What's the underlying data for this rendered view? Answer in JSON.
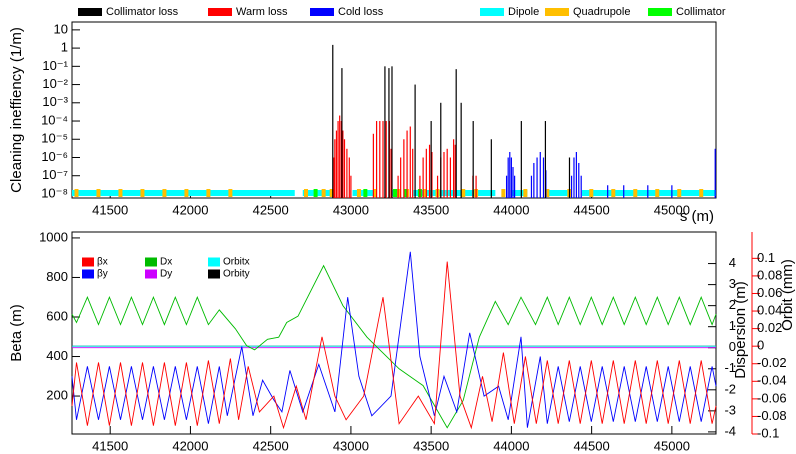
{
  "chart_data": [
    {
      "type": "bar",
      "ylabel": "Cleaning ineffiency (1/m)",
      "xlabel": "s (m)",
      "xlim": [
        41262,
        45275
      ],
      "xticks": [
        41500,
        42000,
        42500,
        43000,
        43500,
        44000,
        44500,
        45000
      ],
      "ylim": [
        6e-09,
        27
      ],
      "yscale": "log",
      "yticks": [
        10,
        1,
        {
          "value": 0.1,
          "label": "10⁻¹"
        },
        {
          "value": 0.01,
          "label": "10⁻²"
        },
        {
          "value": 0.001,
          "label": "10⁻³"
        },
        {
          "value": 0.0001,
          "label": "10⁻⁴"
        },
        {
          "value": 1e-05,
          "label": "10⁻⁵"
        },
        {
          "value": 1e-06,
          "label": "10⁻⁶"
        },
        {
          "value": 1e-07,
          "label": "10⁻⁷"
        },
        {
          "value": 1e-08,
          "label": "10⁻⁸"
        }
      ],
      "series": [
        {
          "name": "Collimator loss",
          "color": "#000000",
          "x": [
            42887,
            42944,
            43212,
            43237,
            43256,
            43400,
            43500,
            43560,
            43656,
            43687,
            43762,
            43875,
            44062,
            44212,
            44362
          ],
          "values": [
            1.5,
            0.08,
            0.1,
            0.08,
            0.1,
            0.01,
            0.0001,
            0.001,
            0.07,
            0.001,
            0.0001,
            1e-05,
            0.0001,
            0.0001,
            1e-06
          ]
        },
        {
          "name": "Warm loss",
          "color": "#ff0000",
          "x": [
            42894,
            42900,
            42910,
            42920,
            42930,
            42940,
            42950,
            42960,
            42975,
            42990,
            43000,
            43140,
            43160,
            43180,
            43200,
            43220,
            43240,
            43250,
            43294,
            43310,
            43330,
            43350,
            43370,
            43385,
            43430,
            43450,
            43470,
            43490,
            43505,
            43540,
            43560,
            43580,
            43600,
            43620,
            43640,
            43650,
            43760,
            43780
          ],
          "values": [
            1e-06,
            1e-05,
            3e-05,
            0.0001,
            0.0002,
            0.0001,
            3e-05,
            1e-05,
            3e-06,
            1e-06,
            1e-07,
            2e-05,
            0.0001,
            0.0001,
            0.0001,
            0.0001,
            0.0001,
            3e-06,
            1e-07,
            1e-06,
            1e-05,
            3e-05,
            5e-05,
            3e-06,
            1e-07,
            1e-06,
            3e-06,
            5e-06,
            2e-06,
            1e-07,
            1e-06,
            2e-06,
            3e-06,
            1e-06,
            1e-05,
            5e-06,
            1e-07,
            1e-07
          ]
        },
        {
          "name": "Cold loss",
          "color": "#0000ff",
          "x": [
            43970,
            43980,
            43990,
            44000,
            44010,
            44020,
            44125,
            44140,
            44160,
            44180,
            44200,
            44215,
            44375,
            44390,
            44405,
            44420,
            44435,
            44600,
            44700,
            44850,
            45000,
            45270
          ],
          "values": [
            1e-07,
            1e-06,
            2e-06,
            1e-06,
            3e-07,
            1e-07,
            1e-07,
            5e-07,
            1e-06,
            2e-06,
            1e-06,
            2e-07,
            1e-07,
            1e-06,
            2e-06,
            5e-07,
            1e-07,
            3e-08,
            3e-08,
            3e-08,
            3e-08,
            3e-06
          ]
        }
      ],
      "elements": [
        {
          "name": "Dipole",
          "color": "#00ffff",
          "spans": [
            [
              41262,
              42650
            ],
            [
              42700,
              42880
            ],
            [
              43010,
              43140
            ],
            [
              43260,
              43290
            ],
            [
              43390,
              43900
            ],
            [
              44000,
              44100
            ],
            [
              44220,
              44370
            ],
            [
              44440,
              45275
            ]
          ]
        },
        {
          "name": "Quadrupole",
          "color": "#ffbf00",
          "x": [
            41290,
            41427,
            41564,
            41701,
            41838,
            41975,
            42112,
            42249,
            42720,
            42830,
            42880,
            43050,
            43150,
            43300,
            43350,
            43460,
            43540,
            43700,
            43780,
            43950,
            44087,
            44224,
            44361,
            44498,
            44635,
            44772,
            44909,
            45046,
            45183
          ]
        },
        {
          "name": "Collimator",
          "color": "#00ff00",
          "x": [
            42780,
            43090,
            43275,
            43340,
            43430
          ]
        }
      ]
    },
    {
      "type": "line",
      "ylabel": "Beta (m)",
      "y2label": "Dispersion (m)",
      "y3label": "Orbit (mm)",
      "y3color": "#ff0000",
      "xlim": [
        41262,
        45275
      ],
      "xticks": [
        41500,
        42000,
        42500,
        43000,
        43500,
        44000,
        44500,
        45000
      ],
      "ylim": [
        8,
        1030
      ],
      "yticks": [
        200,
        400,
        600,
        800,
        1000
      ],
      "y2lim": [
        -4.1,
        5.5
      ],
      "y2ticks": [
        -4,
        -3,
        -2,
        -1,
        0,
        1,
        2,
        3,
        4
      ],
      "y3lim": [
        -0.1,
        0.13
      ],
      "y3ticks": [
        -0.1,
        -0.08,
        -0.06,
        -0.04,
        -0.02,
        0,
        0.02,
        0.04,
        0.06,
        0.08,
        0.1
      ],
      "series": [
        {
          "name": "βx",
          "color": "#ff0000",
          "axis": "y",
          "x": [
            41262,
            41290,
            41358,
            41427,
            41495,
            41564,
            41632,
            41701,
            41769,
            41838,
            41906,
            41975,
            42043,
            42112,
            42180,
            42249,
            42300,
            42360,
            42430,
            42520,
            42580,
            42660,
            42720,
            42820,
            42900,
            42970,
            43080,
            43200,
            43300,
            43420,
            43520,
            43600,
            43680,
            43750,
            43820,
            43880,
            43950,
            44018,
            44087,
            44155,
            44224,
            44292,
            44361,
            44429,
            44498,
            44566,
            44635,
            44703,
            44772,
            44840,
            44909,
            44977,
            45046,
            45114,
            45183,
            45251,
            45275
          ],
          "values": [
            150,
            370,
            50,
            370,
            50,
            370,
            50,
            370,
            50,
            370,
            50,
            370,
            50,
            380,
            60,
            390,
            80,
            350,
            120,
            200,
            40,
            250,
            80,
            500,
            200,
            80,
            200,
            700,
            60,
            200,
            60,
            880,
            200,
            40,
            300,
            70,
            420,
            60,
            400,
            60,
            380,
            60,
            380,
            60,
            380,
            60,
            380,
            60,
            380,
            60,
            380,
            60,
            380,
            60,
            380,
            60,
            150
          ]
        },
        {
          "name": "βy",
          "color": "#0000ff",
          "axis": "y",
          "x": [
            41262,
            41290,
            41358,
            41427,
            41495,
            41564,
            41632,
            41701,
            41769,
            41838,
            41906,
            41975,
            42043,
            42112,
            42180,
            42230,
            42320,
            42390,
            42450,
            42520,
            42570,
            42620,
            42700,
            42800,
            42900,
            42980,
            43050,
            43130,
            43250,
            43370,
            43430,
            43520,
            43580,
            43660,
            43740,
            43830,
            43920,
            43980,
            44060,
            44100,
            44180,
            44224,
            44292,
            44361,
            44429,
            44498,
            44566,
            44635,
            44703,
            44772,
            44840,
            44909,
            44977,
            45046,
            45114,
            45183,
            45251,
            45275
          ],
          "values": [
            300,
            80,
            350,
            80,
            350,
            80,
            350,
            80,
            350,
            80,
            350,
            80,
            350,
            60,
            350,
            100,
            450,
            100,
            280,
            180,
            120,
            330,
            120,
            360,
            120,
            700,
            300,
            100,
            200,
            930,
            400,
            100,
            300,
            120,
            520,
            200,
            250,
            80,
            500,
            40,
            400,
            60,
            350,
            70,
            350,
            70,
            350,
            70,
            350,
            70,
            350,
            70,
            350,
            70,
            350,
            70,
            350,
            250
          ]
        },
        {
          "name": "Dx",
          "color": "#00bb00",
          "axis": "y2",
          "x": [
            41262,
            41290,
            41358,
            41427,
            41495,
            41564,
            41632,
            41701,
            41769,
            41838,
            41906,
            41975,
            42043,
            42112,
            42180,
            42280,
            42350,
            42400,
            42480,
            42550,
            42600,
            42670,
            42830,
            42950,
            43100,
            43300,
            43450,
            43600,
            43700,
            43800,
            43900,
            43980,
            44060,
            44150,
            44224,
            44292,
            44361,
            44429,
            44498,
            44566,
            44635,
            44703,
            44772,
            44840,
            44909,
            44977,
            45046,
            45114,
            45183,
            45251,
            45275
          ],
          "values": [
            1.6,
            1.2,
            2.4,
            1.1,
            2.4,
            1.1,
            2.4,
            1.1,
            2.4,
            1.1,
            2.4,
            1.1,
            2.4,
            1.1,
            1.8,
            0.9,
            0.1,
            -0.1,
            0.4,
            0.5,
            1.2,
            1.5,
            3.9,
            2.0,
            0.5,
            -1.0,
            -1.8,
            -3.8,
            -2.5,
            0.5,
            2.2,
            1.1,
            2.4,
            1.1,
            2.4,
            1.1,
            2.4,
            1.1,
            2.4,
            1.1,
            2.4,
            1.1,
            2.4,
            1.1,
            2.4,
            1.1,
            2.4,
            1.1,
            2.4,
            1.1,
            1.6
          ]
        },
        {
          "name": "Dy",
          "color": "#cc00ff",
          "axis": "y2",
          "x": [
            41262,
            45275
          ],
          "values": [
            0,
            0
          ]
        },
        {
          "name": "Orbitx",
          "color": "#00ffff",
          "axis": "y3",
          "x": [
            41262,
            45275
          ],
          "values": [
            0,
            0
          ]
        },
        {
          "name": "Orbity",
          "color": "#000000",
          "axis": "y3",
          "x": [
            41262,
            45275
          ],
          "values": [
            0,
            0
          ]
        }
      ]
    }
  ]
}
